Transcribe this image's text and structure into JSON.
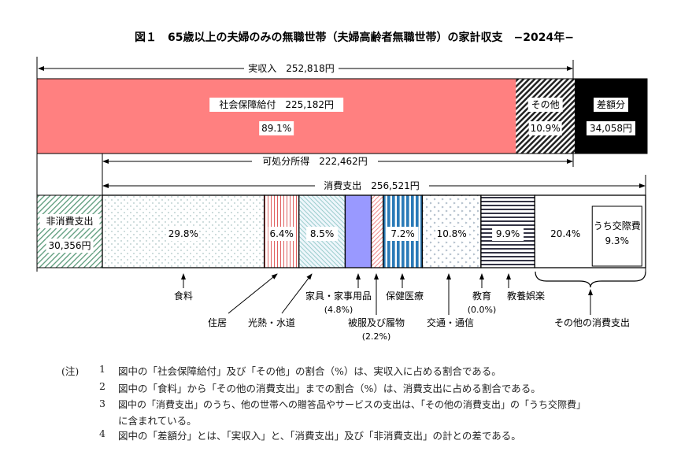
{
  "title": "図１　65歳以上の夫婦のみの無職世帯（夫婦高齢者無職世帯）の家計収支　−2024年−",
  "income": {
    "label": "実収入　252,818円",
    "total": 252818,
    "segments": [
      {
        "name": "社会保障給付",
        "label": "社会保障給付　225,182円",
        "pct": "89.1%",
        "value": 225182,
        "color": "#ff8080"
      },
      {
        "name": "その他",
        "label": "その他",
        "pct": "10.9%",
        "value": 27636,
        "pattern": "black-diagonal-hatch"
      }
    ],
    "deficit": {
      "label": "差額分",
      "value_text": "34,058円",
      "value": 34058,
      "color": "#000000"
    }
  },
  "disposable": {
    "label": "可処分所得　222,462円"
  },
  "consumption": {
    "label": "消費支出　256,521円",
    "non_consumption": {
      "label": "非消費支出",
      "value_text": "30,356円",
      "pattern": "green-diagonal-hatch"
    },
    "segments": [
      {
        "key": "food",
        "name": "食料",
        "pct": 29.8,
        "pct_text": "29.8%"
      },
      {
        "key": "housing",
        "name": "住居",
        "pct": 6.4,
        "pct_text": "6.4%"
      },
      {
        "key": "utilities",
        "name": "光熱・水道",
        "pct": 8.5,
        "pct_text": "8.5%"
      },
      {
        "key": "furniture",
        "name": "家具・家事用品",
        "pct": 4.8,
        "pct_text": "(4.8%)"
      },
      {
        "key": "clothing",
        "name": "被服及び履物",
        "pct": 2.2,
        "pct_text": "(2.2%)"
      },
      {
        "key": "medical",
        "name": "保健医療",
        "pct": 7.2,
        "pct_text": "7.2%"
      },
      {
        "key": "transport",
        "name": "交通・通信",
        "pct": 10.8,
        "pct_text": "10.8%"
      },
      {
        "key": "education",
        "name": "教育",
        "pct": 0.0,
        "pct_text": "(0.0%)"
      },
      {
        "key": "culture",
        "name": "教養娯楽",
        "pct": 9.9,
        "pct_text": "9.9%"
      },
      {
        "key": "other",
        "name": "その他の消費支出",
        "pct": 20.4,
        "pct_text": "20.4%"
      }
    ],
    "sub_box": {
      "label": "うち交際費",
      "pct_text": "9.3%"
    }
  },
  "notes": {
    "prefix": "(注)",
    "items": [
      {
        "num": "1",
        "text": "図中の「社会保障給付」及び「その他」の割合（%）は、実収入に占める割合である。"
      },
      {
        "num": "2",
        "text": "図中の「食料」から「その他の消費支出」までの割合（%）は、消費支出に占める割合である。"
      },
      {
        "num": "3",
        "text": "図中の「消費支出」のうち、他の世帯への贈答品やサービスの支出は、「その他の消費支出」の「うち交際費」",
        "cont": "に含まれている。"
      },
      {
        "num": "4",
        "text": "図中の「差額分」とは、「実収入」と、「消費支出」及び「非消費支出」の計との差である。"
      }
    ]
  }
}
